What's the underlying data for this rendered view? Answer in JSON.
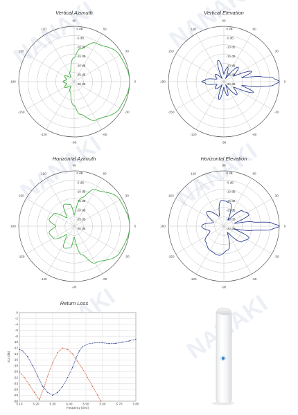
{
  "watermark": {
    "text": "NANAKI",
    "color": "#c9d6e6"
  },
  "chart_data": [
    {
      "type": "polar",
      "title": "Vertical Azimuth",
      "angle_labels": [
        "0",
        "30",
        "60",
        "90",
        "120",
        "150",
        "180",
        "-150",
        "-120",
        "-90",
        "-60",
        "-30"
      ],
      "radial_labels": [
        "0 dB",
        "-5 dB",
        "-10 dB",
        "-15 dB",
        "-20 dB",
        "-25 dB",
        "-30 dB"
      ],
      "rlim_db": [
        -30,
        0
      ],
      "series": [
        {
          "color": "#3fae3f",
          "pattern": [
            {
              "angle": 0,
              "db": 0
            },
            {
              "angle": 30,
              "db": -1.5
            },
            {
              "angle": 60,
              "db": -6
            },
            {
              "angle": 80,
              "db": -12
            },
            {
              "angle": 90,
              "db": -17
            },
            {
              "angle": 110,
              "db": -24
            },
            {
              "angle": 130,
              "db": -27
            },
            {
              "angle": 150,
              "db": -24
            },
            {
              "angle": 165,
              "db": -26
            },
            {
              "angle": 180,
              "db": -24
            },
            {
              "angle": -165,
              "db": -26
            },
            {
              "angle": -150,
              "db": -24
            },
            {
              "angle": -130,
              "db": -27
            },
            {
              "angle": -110,
              "db": -24
            },
            {
              "angle": -90,
              "db": -17
            },
            {
              "angle": -80,
              "db": -12
            },
            {
              "angle": -60,
              "db": -6
            },
            {
              "angle": -30,
              "db": -1.5
            }
          ]
        }
      ]
    },
    {
      "type": "polar",
      "title": "Vertical Elevation",
      "angle_labels": [
        "0",
        "30",
        "60",
        "90",
        "120",
        "150",
        "180",
        "-150",
        "-120",
        "-90",
        "-60",
        "-30"
      ],
      "radial_labels": [
        "0 dB",
        "-5 dB",
        "-10 dB",
        "-15 dB",
        "-20 dB",
        "-25 dB",
        "-30 dB"
      ],
      "rlim_db": [
        -30,
        0
      ],
      "series": [
        {
          "color": "#2c3f8f",
          "pattern": [
            {
              "angle": 0,
              "db": 0
            },
            {
              "angle": 4,
              "db": -3
            },
            {
              "angle": 8,
              "db": -10
            },
            {
              "angle": 12,
              "db": -20
            },
            {
              "angle": 20,
              "db": -14
            },
            {
              "angle": 30,
              "db": -24
            },
            {
              "angle": 45,
              "db": -19
            },
            {
              "angle": 60,
              "db": -28
            },
            {
              "angle": 75,
              "db": -22
            },
            {
              "angle": 90,
              "db": -26
            },
            {
              "angle": 105,
              "db": -18
            },
            {
              "angle": 120,
              "db": -28
            },
            {
              "angle": 140,
              "db": -24
            },
            {
              "angle": 160,
              "db": -26
            },
            {
              "angle": 175,
              "db": -20
            },
            {
              "angle": 180,
              "db": -18
            },
            {
              "angle": -175,
              "db": -20
            },
            {
              "angle": -160,
              "db": -26
            },
            {
              "angle": -140,
              "db": -24
            },
            {
              "angle": -120,
              "db": -28
            },
            {
              "angle": -105,
              "db": -20
            },
            {
              "angle": -90,
              "db": -27
            },
            {
              "angle": -75,
              "db": -22
            },
            {
              "angle": -60,
              "db": -28
            },
            {
              "angle": -45,
              "db": -20
            },
            {
              "angle": -30,
              "db": -24
            },
            {
              "angle": -20,
              "db": -13
            },
            {
              "angle": -12,
              "db": -20
            },
            {
              "angle": -8,
              "db": -10
            },
            {
              "angle": -4,
              "db": -3
            }
          ]
        }
      ]
    },
    {
      "type": "polar",
      "title": "Horizontal Azimuth",
      "angle_labels": [
        "0",
        "30",
        "60",
        "90",
        "120",
        "150",
        "180",
        "-150",
        "-120",
        "-90",
        "-60",
        "-30"
      ],
      "radial_labels": [
        "0 dB",
        "-5 dB",
        "-10 dB",
        "-15 dB",
        "-20 dB",
        "-25 dB",
        "-30 dB"
      ],
      "rlim_db": [
        -30,
        0
      ],
      "series": [
        {
          "color": "#3fae3f",
          "pattern": [
            {
              "angle": 0,
              "db": 0
            },
            {
              "angle": 30,
              "db": -1.5
            },
            {
              "angle": 60,
              "db": -7
            },
            {
              "angle": 75,
              "db": -14
            },
            {
              "angle": 90,
              "db": -24
            },
            {
              "angle": 100,
              "db": -18
            },
            {
              "angle": 115,
              "db": -17
            },
            {
              "angle": 130,
              "db": -24
            },
            {
              "angle": 150,
              "db": -17
            },
            {
              "angle": 165,
              "db": -16
            },
            {
              "angle": 180,
              "db": -20
            },
            {
              "angle": -165,
              "db": -16
            },
            {
              "angle": -150,
              "db": -17
            },
            {
              "angle": -130,
              "db": -24
            },
            {
              "angle": -115,
              "db": -17
            },
            {
              "angle": -100,
              "db": -18
            },
            {
              "angle": -90,
              "db": -24
            },
            {
              "angle": -75,
              "db": -14
            },
            {
              "angle": -60,
              "db": -7
            },
            {
              "angle": -30,
              "db": -1.5
            }
          ]
        }
      ]
    },
    {
      "type": "polar",
      "title": "Horizontal Elevation",
      "angle_labels": [
        "0",
        "30",
        "60",
        "90",
        "120",
        "150",
        "180",
        "-150",
        "-120",
        "-90",
        "-60",
        "-30"
      ],
      "radial_labels": [
        "0 dB",
        "-5 dB",
        "-10 dB",
        "-15 dB",
        "-20 dB",
        "-25 dB",
        "-30 dB"
      ],
      "rlim_db": [
        -30,
        0
      ],
      "series": [
        {
          "color": "#2c3f8f",
          "pattern": [
            {
              "angle": 0,
              "db": 0
            },
            {
              "angle": 4,
              "db": -4
            },
            {
              "angle": 8,
              "db": -14
            },
            {
              "angle": 15,
              "db": -24
            },
            {
              "angle": 25,
              "db": -15
            },
            {
              "angle": 40,
              "db": -17
            },
            {
              "angle": 55,
              "db": -26
            },
            {
              "angle": 75,
              "db": -17
            },
            {
              "angle": 95,
              "db": -16
            },
            {
              "angle": 115,
              "db": -24
            },
            {
              "angle": 140,
              "db": -18
            },
            {
              "angle": 160,
              "db": -24
            },
            {
              "angle": 180,
              "db": -18
            },
            {
              "angle": -160,
              "db": -22
            },
            {
              "angle": -140,
              "db": -17
            },
            {
              "angle": -120,
              "db": -15
            },
            {
              "angle": -100,
              "db": -14
            },
            {
              "angle": -80,
              "db": -17
            },
            {
              "angle": -60,
              "db": -26
            },
            {
              "angle": -40,
              "db": -17
            },
            {
              "angle": -25,
              "db": -15
            },
            {
              "angle": -15,
              "db": -24
            },
            {
              "angle": -8,
              "db": -14
            },
            {
              "angle": -4,
              "db": -4
            }
          ]
        }
      ]
    },
    {
      "type": "line",
      "title": "Return Loss",
      "xlabel": "Frequency (GHz)",
      "ylabel": "S11 (dB)",
      "x_ticks": [
        "5.10",
        "5.20",
        "5.30",
        "5.40",
        "5.50",
        "5.60",
        "5.70",
        "5.80"
      ],
      "y_ticks": [
        "0",
        "-2",
        "-4",
        "-6",
        "-8",
        "-10",
        "-12",
        "-14",
        "-16",
        "-18",
        "-20",
        "-22",
        "-24",
        "-26",
        "-28",
        "-30"
      ],
      "xlim": [
        5.1,
        5.8
      ],
      "ylim": [
        -30,
        0
      ],
      "grid": true,
      "series": [
        {
          "color": "#d05a3a",
          "x": [
            5.1,
            5.13,
            5.16,
            5.19,
            5.22,
            5.25,
            5.27,
            5.3,
            5.33,
            5.36,
            5.39,
            5.42,
            5.45,
            5.48,
            5.51,
            5.54,
            5.57,
            5.59
          ],
          "y": [
            -20,
            -22,
            -24.5,
            -27,
            -29.5,
            -25,
            -21.5,
            -17,
            -13.5,
            -12,
            -12.5,
            -14,
            -16.5,
            -19,
            -22,
            -25,
            -28,
            -30
          ]
        },
        {
          "color": "#2c3f8f",
          "x": [
            5.1,
            5.12,
            5.15,
            5.18,
            5.21,
            5.24,
            5.27,
            5.3,
            5.33,
            5.36,
            5.39,
            5.42,
            5.44,
            5.46,
            5.48,
            5.52,
            5.56,
            5.6,
            5.64,
            5.68,
            5.72,
            5.76,
            5.8
          ],
          "y": [
            -12.5,
            -13,
            -15,
            -18,
            -21.5,
            -25,
            -27,
            -28,
            -27,
            -25,
            -22,
            -18.5,
            -15.5,
            -13,
            -11.5,
            -10.5,
            -10.2,
            -10.2,
            -10.5,
            -10.4,
            -10,
            -9.6,
            -9
          ]
        }
      ]
    }
  ]
}
